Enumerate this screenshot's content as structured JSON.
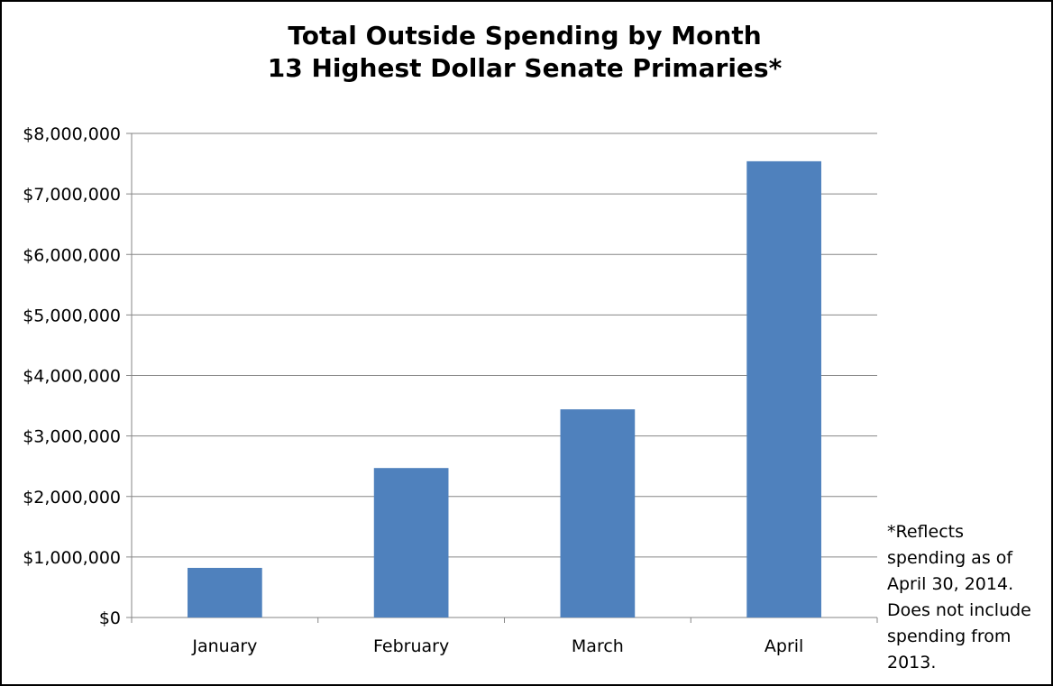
{
  "chart_data": {
    "type": "bar",
    "title": "Total Outside Spending by Month",
    "subtitle": "13 Highest Dollar Senate Primaries*",
    "categories": [
      "January",
      "February",
      "March",
      "April"
    ],
    "values": [
      820000,
      2470000,
      3440000,
      7540000
    ],
    "ylim": [
      0,
      8000000
    ],
    "yticks": [
      0,
      1000000,
      2000000,
      3000000,
      4000000,
      5000000,
      6000000,
      7000000,
      8000000
    ],
    "ytick_labels": [
      "$0",
      "$1,000,000",
      "$2,000,000",
      "$3,000,000",
      "$4,000,000",
      "$5,000,000",
      "$6,000,000",
      "$7,000,000",
      "$8,000,000"
    ],
    "xlabel": "",
    "ylabel": "",
    "grid": true,
    "bar_color": "#4f81bd",
    "annotation_lines": [
      "*Reflects",
      "spending as of",
      "April 30, 2014.",
      "Does not include",
      "spending from",
      "2013."
    ]
  }
}
